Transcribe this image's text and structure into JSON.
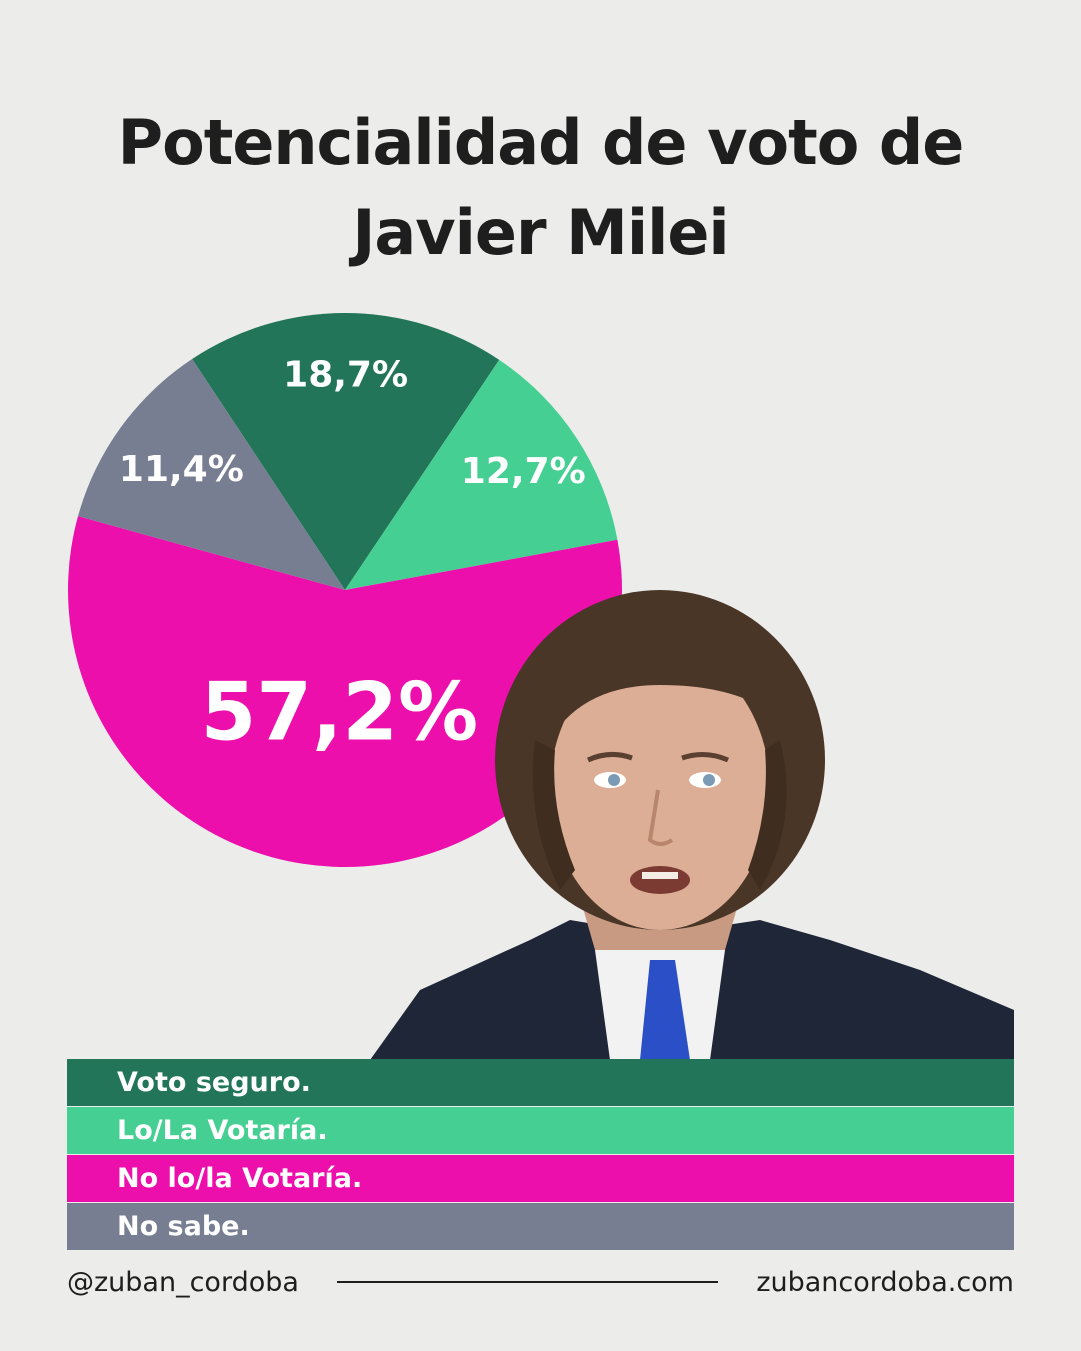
{
  "title_line1": "Potencialidad de voto de",
  "title_line2": "Javier Milei",
  "chart_data": {
    "type": "pie",
    "slices": [
      {
        "label": "Voto seguro.",
        "value": 18.7,
        "display": "18,7%",
        "color": "#227558"
      },
      {
        "label": "Lo/La Votaría.",
        "value": 12.7,
        "display": "12,7%",
        "color": "#45cf92"
      },
      {
        "label": "No lo/la Votaría.",
        "value": 57.2,
        "display": "57,2%",
        "color": "#ec0fab"
      },
      {
        "label": "No sabe.",
        "value": 11.4,
        "display": "11,4%",
        "color": "#787e92"
      }
    ],
    "legend_position": "bottom"
  },
  "footer": {
    "handle": "@zuban_cordoba",
    "website": "zubancordoba.com"
  }
}
